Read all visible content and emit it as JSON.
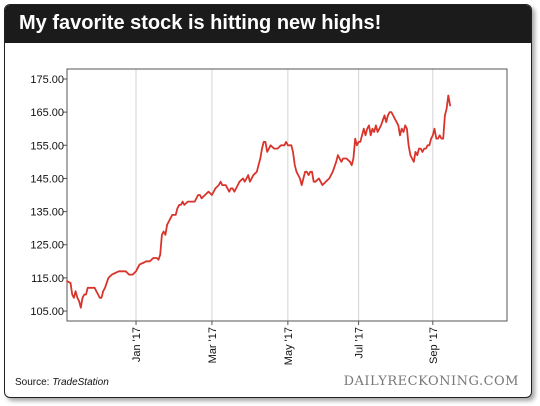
{
  "header": {
    "title": "My favorite stock is hitting new highs!"
  },
  "footer": {
    "source_label": "Source: ",
    "source_name": "TradeStation",
    "watermark": "DAILYRECKONING.COM"
  },
  "colors": {
    "line": "#d9342b",
    "title_bg": "#1b1b1b",
    "frame": "#555555"
  },
  "chart_data": {
    "type": "line",
    "title": "My favorite stock is hitting new highs!",
    "xlabel": "",
    "ylabel": "",
    "ylim": [
      102,
      178
    ],
    "xlim": [
      0,
      255
    ],
    "y_ticks": [
      105,
      115,
      125,
      135,
      145,
      155,
      165,
      175
    ],
    "y_tick_labels": [
      "105.00",
      "115.00",
      "125.00",
      "135.00",
      "145.00",
      "155.00",
      "165.00",
      "175.00"
    ],
    "x_ticks": [
      {
        "x": 40,
        "label": "Jan '17"
      },
      {
        "x": 84,
        "label": "Mar '17"
      },
      {
        "x": 128,
        "label": "May '17"
      },
      {
        "x": 169,
        "label": "Jul '17"
      },
      {
        "x": 212,
        "label": "Sep '17"
      }
    ],
    "grid": {
      "vertical": true,
      "horizontal": false
    },
    "series": [
      {
        "values": [
          [
            0,
            114
          ],
          [
            2,
            113.5
          ],
          [
            3,
            110
          ],
          [
            4,
            109
          ],
          [
            5,
            111
          ],
          [
            6,
            109
          ],
          [
            7,
            108
          ],
          [
            8,
            106
          ],
          [
            9,
            109
          ],
          [
            10,
            110
          ],
          [
            11,
            110
          ],
          [
            12,
            112
          ],
          [
            14,
            112
          ],
          [
            16,
            112
          ],
          [
            17,
            111
          ],
          [
            18,
            110
          ],
          [
            19,
            109
          ],
          [
            20,
            109
          ],
          [
            21,
            111
          ],
          [
            22,
            112
          ],
          [
            24,
            115
          ],
          [
            26,
            116
          ],
          [
            28,
            116.5
          ],
          [
            30,
            117
          ],
          [
            32,
            117
          ],
          [
            34,
            117
          ],
          [
            36,
            116
          ],
          [
            38,
            116
          ],
          [
            40,
            117
          ],
          [
            42,
            119
          ],
          [
            44,
            119.5
          ],
          [
            46,
            120
          ],
          [
            48,
            120
          ],
          [
            50,
            121
          ],
          [
            52,
            121
          ],
          [
            53,
            120.5
          ],
          [
            54,
            122
          ],
          [
            55,
            128
          ],
          [
            56,
            129
          ],
          [
            57,
            128
          ],
          [
            58,
            131
          ],
          [
            59,
            132
          ],
          [
            60,
            133
          ],
          [
            61,
            134
          ],
          [
            62,
            134
          ],
          [
            63,
            134
          ],
          [
            64,
            136
          ],
          [
            65,
            137
          ],
          [
            66,
            137
          ],
          [
            67,
            138
          ],
          [
            68,
            137
          ],
          [
            70,
            138
          ],
          [
            72,
            138
          ],
          [
            74,
            138
          ],
          [
            76,
            140
          ],
          [
            77,
            140
          ],
          [
            78,
            139
          ],
          [
            80,
            140
          ],
          [
            82,
            141
          ],
          [
            84,
            140
          ],
          [
            86,
            142
          ],
          [
            88,
            143
          ],
          [
            89,
            144
          ],
          [
            90,
            143
          ],
          [
            92,
            143
          ],
          [
            94,
            141
          ],
          [
            95,
            142
          ],
          [
            96,
            142
          ],
          [
            97,
            141
          ],
          [
            98,
            142
          ],
          [
            99,
            143
          ],
          [
            100,
            144
          ],
          [
            102,
            145
          ],
          [
            103,
            144
          ],
          [
            104,
            145
          ],
          [
            105,
            146
          ],
          [
            106,
            144
          ],
          [
            108,
            146
          ],
          [
            110,
            147
          ],
          [
            111,
            149
          ],
          [
            112,
            151
          ],
          [
            113,
            154
          ],
          [
            114,
            156
          ],
          [
            115,
            156
          ],
          [
            116,
            153
          ],
          [
            117,
            154
          ],
          [
            118,
            155
          ],
          [
            120,
            154
          ],
          [
            122,
            154
          ],
          [
            124,
            155
          ],
          [
            126,
            155
          ],
          [
            127,
            156
          ],
          [
            128,
            155
          ],
          [
            130,
            155
          ],
          [
            131,
            153
          ],
          [
            132,
            149
          ],
          [
            133,
            147
          ],
          [
            134,
            146
          ],
          [
            135,
            145
          ],
          [
            136,
            143
          ],
          [
            137,
            145
          ],
          [
            138,
            147
          ],
          [
            139,
            147
          ],
          [
            140,
            146
          ],
          [
            141,
            147
          ],
          [
            142,
            147
          ],
          [
            143,
            144
          ],
          [
            144,
            144
          ],
          [
            146,
            145
          ],
          [
            148,
            143
          ],
          [
            150,
            144
          ],
          [
            152,
            145
          ],
          [
            154,
            147
          ],
          [
            156,
            150
          ],
          [
            157,
            152
          ],
          [
            158,
            151
          ],
          [
            159,
            150
          ],
          [
            160,
            151
          ],
          [
            162,
            151
          ],
          [
            164,
            150
          ],
          [
            165,
            149
          ],
          [
            166,
            151
          ],
          [
            167,
            157
          ],
          [
            168,
            155
          ],
          [
            169,
            156
          ],
          [
            170,
            156
          ],
          [
            172,
            160
          ],
          [
            173,
            158
          ],
          [
            174,
            160
          ],
          [
            175,
            161
          ],
          [
            176,
            158
          ],
          [
            177,
            160
          ],
          [
            178,
            159
          ],
          [
            179,
            161
          ],
          [
            180,
            159
          ],
          [
            182,
            161
          ],
          [
            184,
            164
          ],
          [
            185,
            162
          ],
          [
            186,
            164
          ],
          [
            187,
            165
          ],
          [
            188,
            165
          ],
          [
            189,
            164
          ],
          [
            190,
            163
          ],
          [
            191,
            162
          ],
          [
            192,
            161
          ],
          [
            193,
            158
          ],
          [
            194,
            160
          ],
          [
            195,
            159
          ],
          [
            196,
            161
          ],
          [
            197,
            160
          ],
          [
            198,
            155
          ],
          [
            199,
            152
          ],
          [
            200,
            151
          ],
          [
            201,
            150
          ],
          [
            202,
            153
          ],
          [
            203,
            152
          ],
          [
            204,
            154
          ],
          [
            205,
            154
          ],
          [
            206,
            153
          ],
          [
            207,
            154
          ],
          [
            208,
            154
          ],
          [
            209,
            155
          ],
          [
            210,
            155
          ],
          [
            211,
            157
          ],
          [
            212,
            158
          ],
          [
            213,
            160
          ],
          [
            214,
            157
          ],
          [
            215,
            157
          ],
          [
            216,
            158
          ],
          [
            217,
            157
          ],
          [
            218,
            157
          ],
          [
            219,
            164
          ],
          [
            220,
            166
          ],
          [
            221,
            170
          ],
          [
            222,
            167
          ]
        ]
      }
    ]
  }
}
